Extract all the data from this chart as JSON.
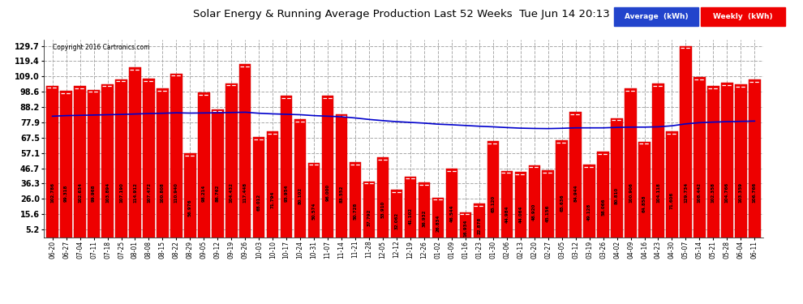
{
  "title": "Solar Energy & Running Average Production Last 52 Weeks  Tue Jun 14 20:13",
  "copyright": "Copyright 2016 Cartronics.com",
  "bar_color": "#ee0000",
  "avg_line_color": "#0000cc",
  "bar_edge_color": "#cc0000",
  "background_color": "#ffffff",
  "grid_color": "#aaaaaa",
  "legend_avg_color": "#2244cc",
  "legend_weekly_color": "#ee0000",
  "ylim_low": 0,
  "ylim_high": 134.0,
  "yticks": [
    5.2,
    15.6,
    26.0,
    36.3,
    46.7,
    57.1,
    67.5,
    77.9,
    88.2,
    98.6,
    109.0,
    119.4,
    129.7
  ],
  "categories": [
    "06-20",
    "06-27",
    "07-04",
    "07-11",
    "07-18",
    "07-25",
    "08-01",
    "08-08",
    "08-15",
    "08-22",
    "08-29",
    "09-05",
    "09-12",
    "09-19",
    "09-26",
    "10-03",
    "10-10",
    "10-17",
    "10-24",
    "10-31",
    "11-07",
    "11-14",
    "11-21",
    "11-28",
    "12-05",
    "12-12",
    "12-19",
    "12-26",
    "01-02",
    "01-09",
    "01-16",
    "01-23",
    "01-30",
    "02-06",
    "02-13",
    "02-20",
    "02-27",
    "03-05",
    "03-12",
    "03-19",
    "03-26",
    "04-02",
    "04-09",
    "04-16",
    "04-23",
    "04-30",
    "05-07",
    "05-14",
    "05-21",
    "05-28",
    "06-04",
    "06-11"
  ],
  "values": [
    102.786,
    99.318,
    102.634,
    99.968,
    103.894,
    107.19,
    114.912,
    107.472,
    100.808,
    110.94,
    56.976,
    98.214,
    86.762,
    104.432,
    117.448,
    68.012,
    71.794,
    95.954,
    80.102,
    50.574,
    96.0,
    83.552,
    50.728,
    37.792,
    53.91,
    32.062,
    41.102,
    36.932,
    26.834,
    46.544,
    16.934,
    22.878,
    65.12,
    44.984,
    44.064,
    48.92,
    45.156,
    65.636,
    84.944,
    49.128,
    58.066,
    80.81,
    100.906,
    64.858,
    104.118,
    71.606,
    129.734,
    108.442,
    102.358,
    104.766,
    103.359,
    106.766
  ],
  "avg_values": [
    82.0,
    82.4,
    82.6,
    82.8,
    83.0,
    83.2,
    83.5,
    83.8,
    84.0,
    84.3,
    84.1,
    84.2,
    84.3,
    84.5,
    84.7,
    84.0,
    83.6,
    83.3,
    83.0,
    82.4,
    82.0,
    81.6,
    80.8,
    79.8,
    79.0,
    78.3,
    77.8,
    77.3,
    76.6,
    76.2,
    75.7,
    75.2,
    74.8,
    74.3,
    73.9,
    73.7,
    73.6,
    73.8,
    74.1,
    74.1,
    74.1,
    74.4,
    74.6,
    74.6,
    74.8,
    75.5,
    76.8,
    77.6,
    78.0,
    78.3,
    78.5,
    78.7
  ]
}
